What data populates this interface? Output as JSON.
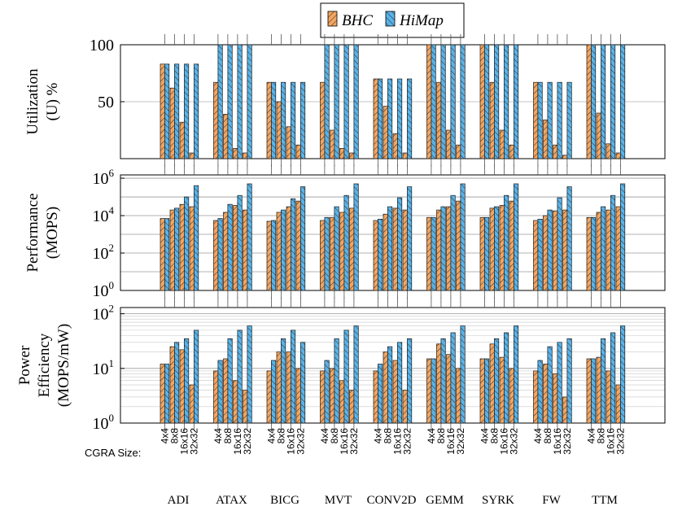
{
  "legend": {
    "items": [
      {
        "name": "BHC",
        "color": "#f4a55f"
      },
      {
        "name": "HiMap",
        "color": "#58b4ea"
      }
    ]
  },
  "cgra_size_label": "CGRA Size:",
  "chart_data": [
    {
      "type": "bar",
      "ylabel_lines": [
        "Utilization",
        "(U) %"
      ],
      "scale": "linear",
      "ylim": [
        0,
        100
      ],
      "yticks": [
        {
          "v": 50,
          "label": "50"
        },
        {
          "v": 100,
          "label": "100"
        }
      ],
      "categories": [
        "ADI",
        "ATAX",
        "BICG",
        "MVT",
        "CONV2D",
        "GEMM",
        "SYRK",
        "FW",
        "TTM"
      ],
      "subcategories": [
        "4x4",
        "8x8",
        "16x16",
        "32x32"
      ],
      "series": [
        {
          "name": "BHC",
          "values": [
            [
              83,
              62,
              32,
              5
            ],
            [
              67,
              39,
              9,
              5
            ],
            [
              67,
              50,
              28,
              12
            ],
            [
              67,
              25,
              9,
              5
            ],
            [
              70,
              46,
              22,
              5
            ],
            [
              100,
              67,
              25,
              12
            ],
            [
              100,
              67,
              25,
              12
            ],
            [
              67,
              34,
              12,
              3
            ],
            [
              100,
              40,
              13,
              5
            ]
          ]
        },
        {
          "name": "HiMap",
          "values": [
            [
              83,
              83,
              83,
              83
            ],
            [
              100,
              100,
              100,
              100
            ],
            [
              67,
              67,
              67,
              67
            ],
            [
              100,
              100,
              100,
              100
            ],
            [
              70,
              70,
              70,
              70
            ],
            [
              100,
              100,
              100,
              100
            ],
            [
              100,
              100,
              100,
              100
            ],
            [
              67,
              67,
              67,
              67
            ],
            [
              100,
              100,
              100,
              100
            ]
          ]
        }
      ]
    },
    {
      "type": "bar",
      "ylabel_lines": [
        "Performance",
        "(MOPS)"
      ],
      "scale": "log",
      "ylim": [
        1,
        1500000
      ],
      "yticks": [
        {
          "v": 1,
          "label": "10",
          "exp": "0"
        },
        {
          "v": 100,
          "label": "10",
          "exp": "2"
        },
        {
          "v": 10000,
          "label": "10",
          "exp": "4"
        },
        {
          "v": 1000000,
          "label": "10",
          "exp": "6"
        }
      ],
      "categories": [
        "ADI",
        "ATAX",
        "BICG",
        "MVT",
        "CONV2D",
        "GEMM",
        "SYRK",
        "FW",
        "TTM"
      ],
      "subcategories": [
        "4x4",
        "8x8",
        "16x16",
        "32x32"
      ],
      "series": [
        {
          "name": "BHC",
          "values": [
            [
              7000,
              20000,
              40000,
              30000
            ],
            [
              5500,
              15000,
              35000,
              20000
            ],
            [
              5000,
              15000,
              30000,
              60000
            ],
            [
              5500,
              8000,
              15000,
              25000
            ],
            [
              5500,
              12000,
              25000,
              20000
            ],
            [
              8000,
              20000,
              30000,
              60000
            ],
            [
              8000,
              25000,
              35000,
              60000
            ],
            [
              5500,
              10000,
              18000,
              20000
            ],
            [
              8000,
              15000,
              20000,
              30000
            ]
          ]
        },
        {
          "name": "HiMap",
          "values": [
            [
              7000,
              25000,
              100000,
              400000
            ],
            [
              7000,
              40000,
              120000,
              500000
            ],
            [
              5500,
              20000,
              80000,
              350000
            ],
            [
              8000,
              30000,
              120000,
              500000
            ],
            [
              6500,
              30000,
              90000,
              350000
            ],
            [
              8000,
              30000,
              120000,
              500000
            ],
            [
              8000,
              30000,
              120000,
              500000
            ],
            [
              6500,
              20000,
              90000,
              350000
            ],
            [
              8000,
              30000,
              120000,
              500000
            ]
          ]
        }
      ]
    },
    {
      "type": "bar",
      "ylabel_lines": [
        "Power",
        "Efficiency",
        "(MOPS/mW)"
      ],
      "scale": "log",
      "ylim": [
        1,
        130
      ],
      "yticks": [
        {
          "v": 1,
          "label": "10",
          "exp": "0"
        },
        {
          "v": 10,
          "label": "10",
          "exp": "1"
        },
        {
          "v": 100,
          "label": "10",
          "exp": "2"
        }
      ],
      "categories": [
        "ADI",
        "ATAX",
        "BICG",
        "MVT",
        "CONV2D",
        "GEMM",
        "SYRK",
        "FW",
        "TTM"
      ],
      "subcategories": [
        "4x4",
        "8x8",
        "16x16",
        "32x32"
      ],
      "series": [
        {
          "name": "BHC",
          "values": [
            [
              12,
              25,
              22,
              5
            ],
            [
              9,
              15,
              6,
              4
            ],
            [
              9,
              20,
              20,
              10
            ],
            [
              9,
              10,
              6,
              4
            ],
            [
              9,
              20,
              14,
              4
            ],
            [
              15,
              28,
              18,
              10
            ],
            [
              15,
              28,
              16,
              10
            ],
            [
              9,
              12,
              8,
              3
            ],
            [
              15,
              16,
              9,
              5
            ]
          ]
        },
        {
          "name": "HiMap",
          "values": [
            [
              12,
              30,
              35,
              50
            ],
            [
              14,
              35,
              50,
              60
            ],
            [
              14,
              35,
              50,
              30
            ],
            [
              14,
              35,
              50,
              60
            ],
            [
              12,
              25,
              30,
              35
            ],
            [
              15,
              35,
              45,
              60
            ],
            [
              15,
              35,
              45,
              60
            ],
            [
              14,
              25,
              30,
              35
            ],
            [
              15,
              35,
              45,
              60
            ]
          ]
        }
      ]
    }
  ]
}
